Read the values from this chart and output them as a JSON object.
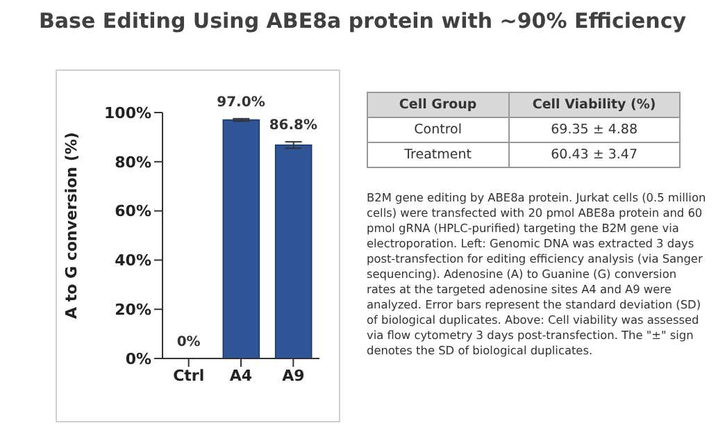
{
  "chart_data": [
    {
      "type": "bar",
      "title": "Base Editing Using ABE8a protein with ~90% Efficiency",
      "ylabel": "A to G conversion (%)",
      "categories": [
        "Ctrl",
        "A4",
        "A9"
      ],
      "series": [
        {
          "color": "#2f5597",
          "values": [
            0,
            97.0,
            86.8
          ],
          "errors": [
            null,
            0.5,
            1.3
          ],
          "value_labels": [
            "0%",
            "97.0%",
            "86.8%"
          ]
        }
      ],
      "ylim": [
        0,
        100
      ],
      "yticks": [
        {
          "value": 0,
          "label": "0%"
        },
        {
          "value": 20,
          "label": "20%"
        },
        {
          "value": 40,
          "label": "40%"
        },
        {
          "value": 60,
          "label": "60%"
        },
        {
          "value": 80,
          "label": "80%"
        },
        {
          "value": 100,
          "label": "100%"
        }
      ],
      "grid": false,
      "legend": false
    },
    {
      "type": "other",
      "annotations": [
        "Cell Group",
        "Cell Viability (%)",
        "Control",
        "69.35  ± 4.88",
        "Treatment",
        "60.43  ± 3.47",
        "B2M gene editing by ABE8a protein. Jurkat cells (0.5 million cells) were transfected with 20 pmol ABE8a protein and 60 pmol gRNA (HPLC-purified) targeting the B2M gene via electroporation. Left: Genomic DNA was extracted 3 days post-transfection for editing efficiency analysis (via Sanger sequencing). Adenosine (A) to Guanine (G) conversion rates at the targeted adenosine sites A4 and A9 were analyzed. Error bars represent the standard deviation (SD) of biological duplicates. Above: Cell viability was assessed via flow cytometry 3 days post-transfection. The \"±\" sign denotes the SD of biological duplicates."
      ]
    }
  ]
}
